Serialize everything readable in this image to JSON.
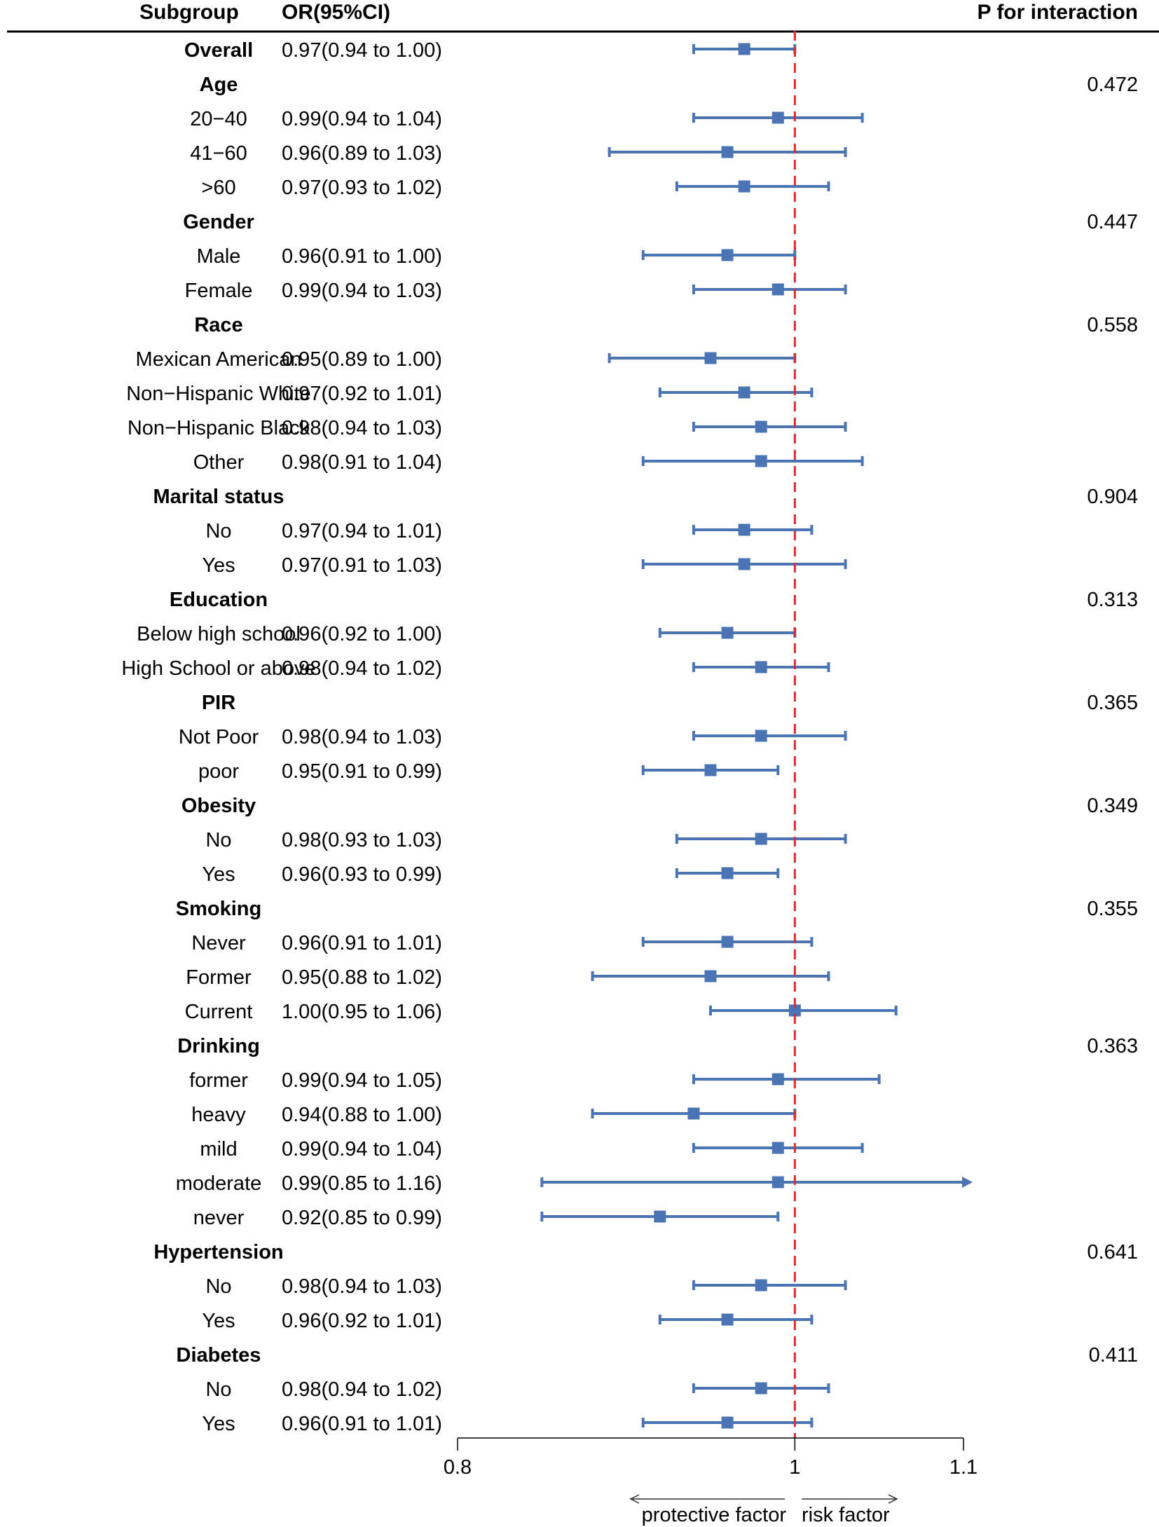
{
  "chart_data": {
    "type": "forest",
    "headers": {
      "subgroup": "Subgroup",
      "estimate": "OR(95%CI)",
      "p": "P for interaction"
    },
    "reference_line": 1,
    "x_axis": {
      "range": [
        0.8,
        1.1
      ],
      "ticks": [
        "0.8",
        "1",
        "1.1"
      ]
    },
    "direction_labels": {
      "left": "protective factor",
      "right": "risk factor"
    },
    "rows": [
      {
        "label": "Overall",
        "group": true,
        "ci": "0.97(0.94 to 1.00)",
        "or": 0.97,
        "low": 0.94,
        "high": 1.0,
        "p": ""
      },
      {
        "label": "Age",
        "group": true,
        "ci": "",
        "p": "0.472"
      },
      {
        "label": "20−40",
        "group": false,
        "ci": "0.99(0.94 to 1.04)",
        "or": 0.99,
        "low": 0.94,
        "high": 1.04,
        "p": ""
      },
      {
        "label": "41−60",
        "group": false,
        "ci": "0.96(0.89 to 1.03)",
        "or": 0.96,
        "low": 0.89,
        "high": 1.03,
        "p": ""
      },
      {
        "label": ">60",
        "group": false,
        "ci": "0.97(0.93 to 1.02)",
        "or": 0.97,
        "low": 0.93,
        "high": 1.02,
        "p": ""
      },
      {
        "label": "Gender",
        "group": true,
        "ci": "",
        "p": "0.447"
      },
      {
        "label": "Male",
        "group": false,
        "ci": "0.96(0.91 to 1.00)",
        "or": 0.96,
        "low": 0.91,
        "high": 1.0,
        "p": ""
      },
      {
        "label": "Female",
        "group": false,
        "ci": "0.99(0.94 to 1.03)",
        "or": 0.99,
        "low": 0.94,
        "high": 1.03,
        "p": ""
      },
      {
        "label": "Race",
        "group": true,
        "ci": "",
        "p": "0.558"
      },
      {
        "label": "Mexican American",
        "group": false,
        "ci": "0.95(0.89 to 1.00)",
        "or": 0.95,
        "low": 0.89,
        "high": 1.0,
        "p": ""
      },
      {
        "label": "Non−Hispanic White",
        "group": false,
        "ci": "0.97(0.92 to 1.01)",
        "or": 0.97,
        "low": 0.92,
        "high": 1.01,
        "p": ""
      },
      {
        "label": "Non−Hispanic Black",
        "group": false,
        "ci": "0.98(0.94 to 1.03)",
        "or": 0.98,
        "low": 0.94,
        "high": 1.03,
        "p": ""
      },
      {
        "label": "Other",
        "group": false,
        "ci": "0.98(0.91 to 1.04)",
        "or": 0.98,
        "low": 0.91,
        "high": 1.04,
        "p": ""
      },
      {
        "label": "Marital status",
        "group": true,
        "ci": "",
        "p": "0.904"
      },
      {
        "label": "No",
        "group": false,
        "ci": "0.97(0.94 to 1.01)",
        "or": 0.97,
        "low": 0.94,
        "high": 1.01,
        "p": ""
      },
      {
        "label": "Yes",
        "group": false,
        "ci": "0.97(0.91 to 1.03)",
        "or": 0.97,
        "low": 0.91,
        "high": 1.03,
        "p": ""
      },
      {
        "label": "Education",
        "group": true,
        "ci": "",
        "p": "0.313"
      },
      {
        "label": "Below high school",
        "group": false,
        "ci": "0.96(0.92 to 1.00)",
        "or": 0.96,
        "low": 0.92,
        "high": 1.0,
        "p": ""
      },
      {
        "label": "High School or above",
        "group": false,
        "ci": "0.98(0.94 to 1.02)",
        "or": 0.98,
        "low": 0.94,
        "high": 1.02,
        "p": ""
      },
      {
        "label": "PIR",
        "group": true,
        "ci": "",
        "p": "0.365"
      },
      {
        "label": "Not Poor",
        "group": false,
        "ci": "0.98(0.94 to 1.03)",
        "or": 0.98,
        "low": 0.94,
        "high": 1.03,
        "p": ""
      },
      {
        "label": "poor",
        "group": false,
        "ci": "0.95(0.91 to 0.99)",
        "or": 0.95,
        "low": 0.91,
        "high": 0.99,
        "p": ""
      },
      {
        "label": "Obesity",
        "group": true,
        "ci": "",
        "p": "0.349"
      },
      {
        "label": "No",
        "group": false,
        "ci": "0.98(0.93 to 1.03)",
        "or": 0.98,
        "low": 0.93,
        "high": 1.03,
        "p": ""
      },
      {
        "label": "Yes",
        "group": false,
        "ci": "0.96(0.93 to 0.99)",
        "or": 0.96,
        "low": 0.93,
        "high": 0.99,
        "p": ""
      },
      {
        "label": "Smoking",
        "group": true,
        "ci": "",
        "p": "0.355"
      },
      {
        "label": "Never",
        "group": false,
        "ci": "0.96(0.91 to 1.01)",
        "or": 0.96,
        "low": 0.91,
        "high": 1.01,
        "p": ""
      },
      {
        "label": "Former",
        "group": false,
        "ci": "0.95(0.88 to 1.02)",
        "or": 0.95,
        "low": 0.88,
        "high": 1.02,
        "p": ""
      },
      {
        "label": "Current",
        "group": false,
        "ci": "1.00(0.95 to 1.06)",
        "or": 1.0,
        "low": 0.95,
        "high": 1.06,
        "p": ""
      },
      {
        "label": "Drinking",
        "group": true,
        "ci": "",
        "p": "0.363"
      },
      {
        "label": "former",
        "group": false,
        "ci": "0.99(0.94 to 1.05)",
        "or": 0.99,
        "low": 0.94,
        "high": 1.05,
        "p": ""
      },
      {
        "label": "heavy",
        "group": false,
        "ci": "0.94(0.88 to 1.00)",
        "or": 0.94,
        "low": 0.88,
        "high": 1.0,
        "p": ""
      },
      {
        "label": "mild",
        "group": false,
        "ci": "0.99(0.94 to 1.04)",
        "or": 0.99,
        "low": 0.94,
        "high": 1.04,
        "p": ""
      },
      {
        "label": "moderate",
        "group": false,
        "ci": "0.99(0.85 to 1.16)",
        "or": 0.99,
        "low": 0.85,
        "high": 1.16,
        "p": ""
      },
      {
        "label": "never",
        "group": false,
        "ci": "0.92(0.85 to 0.99)",
        "or": 0.92,
        "low": 0.85,
        "high": 0.99,
        "p": ""
      },
      {
        "label": "Hypertension",
        "group": true,
        "ci": "",
        "p": "0.641"
      },
      {
        "label": "No",
        "group": false,
        "ci": "0.98(0.94 to 1.03)",
        "or": 0.98,
        "low": 0.94,
        "high": 1.03,
        "p": ""
      },
      {
        "label": "Yes",
        "group": false,
        "ci": "0.96(0.92 to 1.01)",
        "or": 0.96,
        "low": 0.92,
        "high": 1.01,
        "p": ""
      },
      {
        "label": "Diabetes",
        "group": true,
        "ci": "",
        "p": "0.411"
      },
      {
        "label": "No",
        "group": false,
        "ci": "0.98(0.94 to 1.02)",
        "or": 0.98,
        "low": 0.94,
        "high": 1.02,
        "p": ""
      },
      {
        "label": "Yes",
        "group": false,
        "ci": "0.96(0.91 to 1.01)",
        "or": 0.96,
        "low": 0.91,
        "high": 1.01,
        "p": ""
      }
    ]
  },
  "colors": {
    "marker": "#4a74b4",
    "reference": "#e8272a",
    "text": "#111111"
  }
}
